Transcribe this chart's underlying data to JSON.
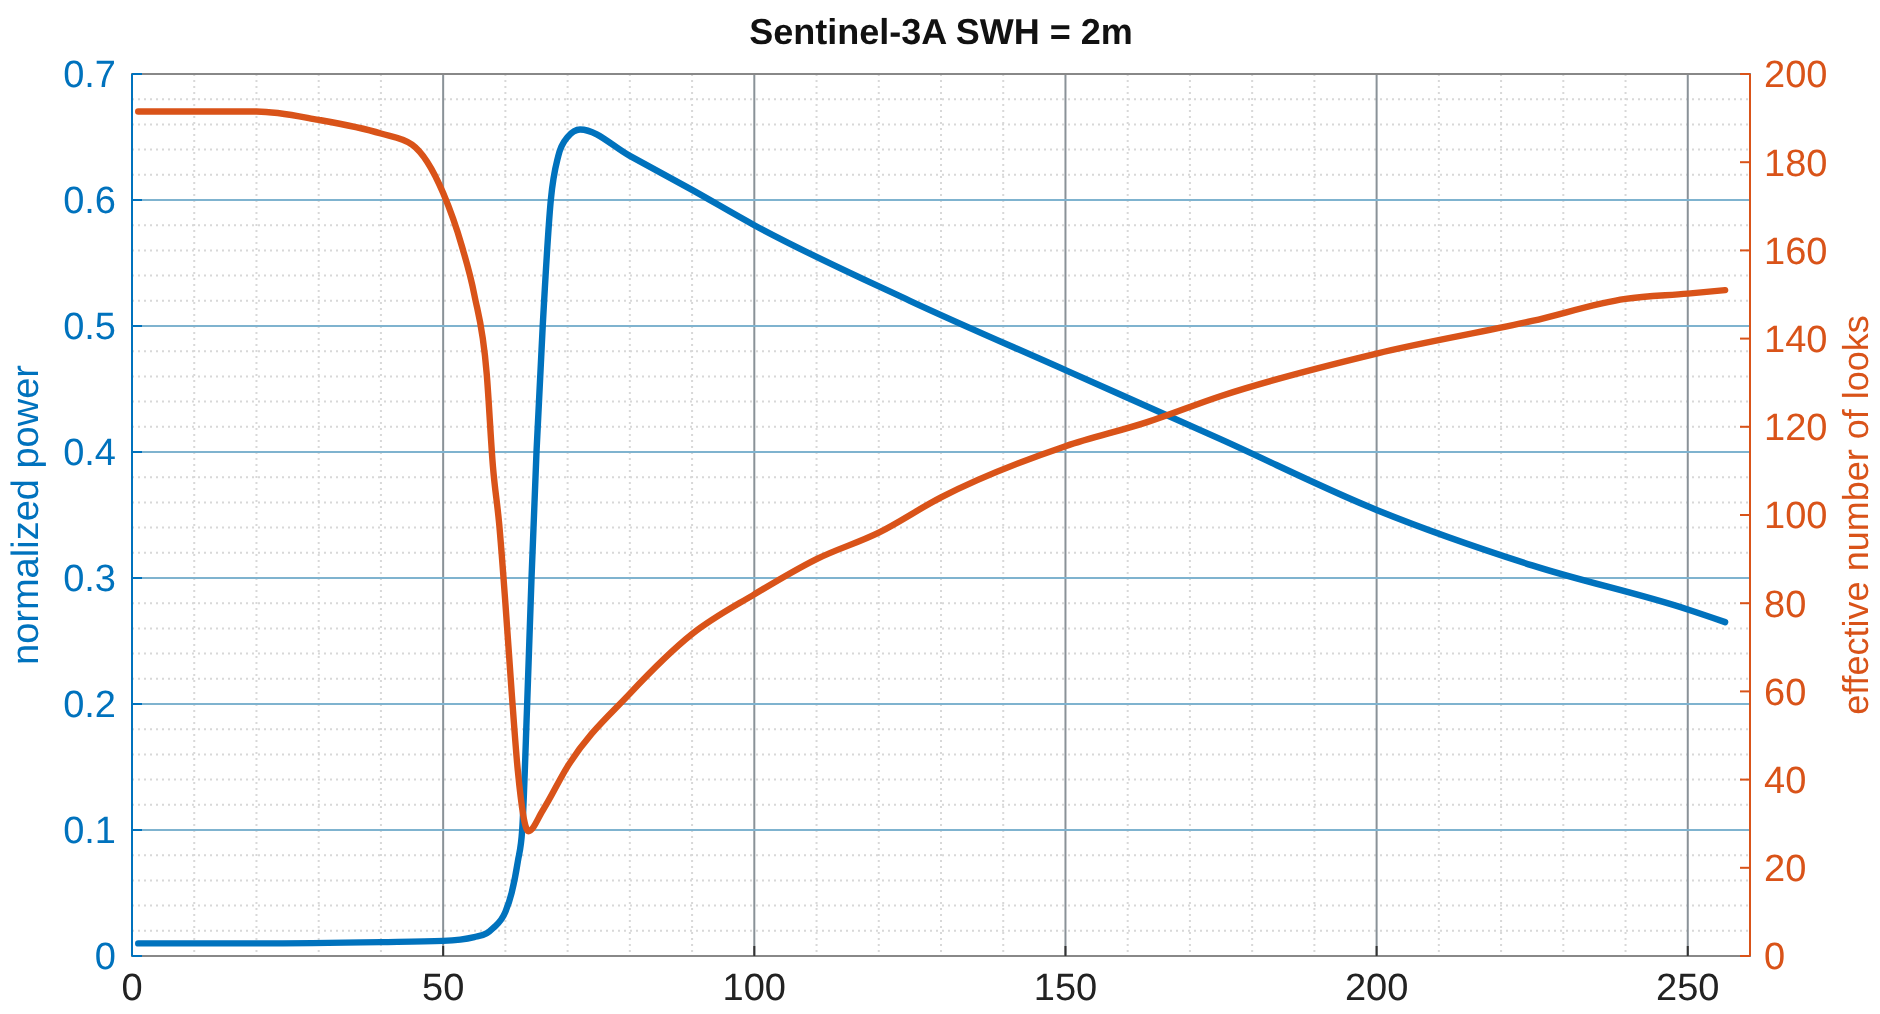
{
  "chart_data": {
    "type": "line",
    "title": "Sentinel-3A SWH = 2m",
    "ylabel": "normalized power",
    "y2label": "effective number of looks",
    "xlim": [
      0,
      260
    ],
    "xticks": [
      0,
      50,
      100,
      150,
      200,
      250
    ],
    "ylim": [
      0,
      0.7
    ],
    "yticks": [
      0,
      0.1,
      0.2,
      0.3,
      0.4,
      0.5,
      0.6,
      0.7
    ],
    "y2lim": [
      0,
      200
    ],
    "y2ticks": [
      0,
      20,
      40,
      60,
      80,
      100,
      120,
      140,
      160,
      180,
      200
    ],
    "grid": true,
    "line_style": "solid",
    "series": [
      {
        "color": "#0072bd",
        "axis": "y",
        "x": [
          1,
          20,
          40,
          50,
          55,
          57,
          58,
          60,
          61,
          62,
          62.7,
          63.5,
          64.2,
          65,
          66,
          67.3,
          68.5,
          70,
          72,
          80,
          90,
          100,
          125,
          150,
          175,
          200,
          225,
          250,
          256
        ],
        "values": [
          0.01,
          0.01,
          0.011,
          0.012,
          0.015,
          0.018,
          0.022,
          0.035,
          0.05,
          0.075,
          0.1,
          0.2,
          0.3,
          0.4,
          0.5,
          0.6,
          0.635,
          0.65,
          0.656,
          0.635,
          0.608,
          0.58,
          0.52,
          0.465,
          0.41,
          0.354,
          0.31,
          0.275,
          0.265
        ]
      },
      {
        "color": "#d95319",
        "axis": "y2",
        "x": [
          1,
          20,
          30,
          40,
          45,
          50,
          53,
          55,
          57,
          58,
          59,
          60,
          61,
          62,
          63.7,
          66,
          70,
          80,
          90,
          100,
          110,
          120,
          130,
          150,
          163,
          175,
          200,
          225,
          240,
          250,
          256
        ],
        "values": [
          191.5,
          191.5,
          189.6,
          186.5,
          184,
          173,
          161,
          150,
          132,
          111,
          98,
          80,
          60,
          42,
          28.3,
          33,
          43,
          59.5,
          73,
          82,
          90,
          96,
          104,
          115.6,
          121,
          127,
          136.6,
          144,
          149,
          150.2,
          151
        ]
      }
    ]
  }
}
